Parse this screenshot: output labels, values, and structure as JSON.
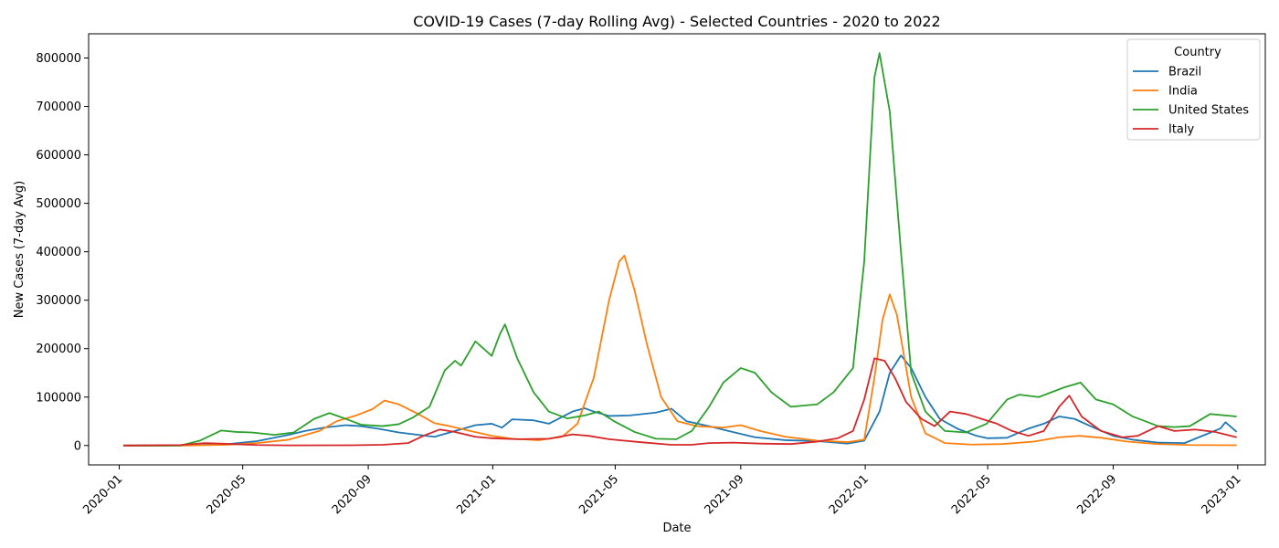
{
  "chart_data": {
    "type": "line",
    "title": "COVID-19 Cases (7-day Rolling Avg) - Selected Countries - 2020 to 2022",
    "xlabel": "Date",
    "ylabel": "New Cases (7-day Avg)",
    "xlim": [
      "2019-12-02",
      "2023-01-28"
    ],
    "ylim": [
      -40000,
      850000
    ],
    "x_ticks": [
      "2020-01",
      "2020-05",
      "2020-09",
      "2021-01",
      "2021-05",
      "2021-09",
      "2022-01",
      "2022-05",
      "2022-09",
      "2023-01"
    ],
    "y_ticks": [
      0,
      100000,
      200000,
      300000,
      400000,
      500000,
      600000,
      700000,
      800000
    ],
    "grid": false,
    "legend": {
      "title": "Country",
      "position": "top-right"
    },
    "series": [
      {
        "name": "Brazil",
        "color": "#1f77b4",
        "points": [
          [
            "2020-01-05",
            0
          ],
          [
            "2020-02-15",
            0
          ],
          [
            "2020-03-15",
            1000
          ],
          [
            "2020-04-15",
            2500
          ],
          [
            "2020-05-15",
            9000
          ],
          [
            "2020-06-15",
            22000
          ],
          [
            "2020-07-01",
            30000
          ],
          [
            "2020-07-20",
            37000
          ],
          [
            "2020-08-10",
            42000
          ],
          [
            "2020-08-25",
            40000
          ],
          [
            "2020-09-10",
            35000
          ],
          [
            "2020-10-01",
            27000
          ],
          [
            "2020-10-20",
            22000
          ],
          [
            "2020-11-05",
            18000
          ],
          [
            "2020-11-25",
            30000
          ],
          [
            "2020-12-15",
            42000
          ],
          [
            "2020-12-31",
            45000
          ],
          [
            "2021-01-10",
            37000
          ],
          [
            "2021-01-20",
            54000
          ],
          [
            "2021-02-10",
            52000
          ],
          [
            "2021-02-25",
            45000
          ],
          [
            "2021-03-20",
            70000
          ],
          [
            "2021-04-01",
            77000
          ],
          [
            "2021-04-10",
            70000
          ],
          [
            "2021-04-25",
            61000
          ],
          [
            "2021-05-15",
            62000
          ],
          [
            "2021-06-10",
            68000
          ],
          [
            "2021-06-25",
            76000
          ],
          [
            "2021-07-10",
            50000
          ],
          [
            "2021-08-01",
            40000
          ],
          [
            "2021-08-20",
            30000
          ],
          [
            "2021-09-15",
            17000
          ],
          [
            "2021-10-15",
            11000
          ],
          [
            "2021-11-15",
            9000
          ],
          [
            "2021-12-15",
            4000
          ],
          [
            "2021-12-31",
            10000
          ],
          [
            "2022-01-15",
            70000
          ],
          [
            "2022-01-25",
            150000
          ],
          [
            "2022-02-05",
            186000
          ],
          [
            "2022-02-15",
            160000
          ],
          [
            "2022-03-01",
            100000
          ],
          [
            "2022-03-15",
            55000
          ],
          [
            "2022-04-01",
            35000
          ],
          [
            "2022-04-20",
            20000
          ],
          [
            "2022-05-01",
            15000
          ],
          [
            "2022-05-20",
            16000
          ],
          [
            "2022-06-10",
            35000
          ],
          [
            "2022-06-25",
            45000
          ],
          [
            "2022-07-10",
            60000
          ],
          [
            "2022-07-25",
            55000
          ],
          [
            "2022-08-15",
            35000
          ],
          [
            "2022-09-01",
            20000
          ],
          [
            "2022-09-20",
            12000
          ],
          [
            "2022-10-15",
            6000
          ],
          [
            "2022-11-10",
            5000
          ],
          [
            "2022-11-25",
            18000
          ],
          [
            "2022-12-15",
            35000
          ],
          [
            "2022-12-20",
            48000
          ],
          [
            "2022-12-31",
            28000
          ]
        ]
      },
      {
        "name": "India",
        "color": "#ff7f0e",
        "points": [
          [
            "2020-01-05",
            0
          ],
          [
            "2020-03-01",
            0
          ],
          [
            "2020-04-15",
            1500
          ],
          [
            "2020-05-15",
            5000
          ],
          [
            "2020-06-15",
            12000
          ],
          [
            "2020-07-15",
            30000
          ],
          [
            "2020-08-01",
            50000
          ],
          [
            "2020-08-20",
            62000
          ],
          [
            "2020-09-05",
            75000
          ],
          [
            "2020-09-17",
            93000
          ],
          [
            "2020-10-01",
            85000
          ],
          [
            "2020-10-20",
            65000
          ],
          [
            "2020-11-05",
            46000
          ],
          [
            "2020-11-20",
            40000
          ],
          [
            "2020-12-10",
            30000
          ],
          [
            "2020-12-31",
            20000
          ],
          [
            "2021-01-20",
            14000
          ],
          [
            "2021-02-15",
            11000
          ],
          [
            "2021-03-10",
            18000
          ],
          [
            "2021-03-25",
            45000
          ],
          [
            "2021-04-10",
            140000
          ],
          [
            "2021-04-25",
            300000
          ],
          [
            "2021-05-05",
            380000
          ],
          [
            "2021-05-10",
            392000
          ],
          [
            "2021-05-20",
            320000
          ],
          [
            "2021-06-01",
            210000
          ],
          [
            "2021-06-15",
            100000
          ],
          [
            "2021-07-01",
            50000
          ],
          [
            "2021-07-20",
            40000
          ],
          [
            "2021-08-15",
            37000
          ],
          [
            "2021-09-01",
            42000
          ],
          [
            "2021-09-20",
            30000
          ],
          [
            "2021-10-15",
            18000
          ],
          [
            "2021-11-15",
            10000
          ],
          [
            "2021-12-15",
            7000
          ],
          [
            "2021-12-31",
            12000
          ],
          [
            "2022-01-10",
            140000
          ],
          [
            "2022-01-18",
            260000
          ],
          [
            "2022-01-25",
            312000
          ],
          [
            "2022-02-01",
            270000
          ],
          [
            "2022-02-15",
            100000
          ],
          [
            "2022-03-01",
            25000
          ],
          [
            "2022-03-20",
            5000
          ],
          [
            "2022-04-15",
            2000
          ],
          [
            "2022-05-15",
            3000
          ],
          [
            "2022-06-15",
            8000
          ],
          [
            "2022-07-10",
            17000
          ],
          [
            "2022-07-30",
            20000
          ],
          [
            "2022-08-20",
            16000
          ],
          [
            "2022-09-15",
            8000
          ],
          [
            "2022-10-15",
            3000
          ],
          [
            "2022-11-15",
            1000
          ],
          [
            "2022-12-31",
            500
          ]
        ]
      },
      {
        "name": "United States",
        "color": "#2ca02c",
        "points": [
          [
            "2020-01-05",
            0
          ],
          [
            "2020-03-01",
            0
          ],
          [
            "2020-03-20",
            10000
          ],
          [
            "2020-04-10",
            31000
          ],
          [
            "2020-04-25",
            28000
          ],
          [
            "2020-05-10",
            27000
          ],
          [
            "2020-06-01",
            22000
          ],
          [
            "2020-06-20",
            27000
          ],
          [
            "2020-07-10",
            55000
          ],
          [
            "2020-07-25",
            67000
          ],
          [
            "2020-08-10",
            55000
          ],
          [
            "2020-08-25",
            43000
          ],
          [
            "2020-09-15",
            40000
          ],
          [
            "2020-10-01",
            44000
          ],
          [
            "2020-10-15",
            58000
          ],
          [
            "2020-10-31",
            80000
          ],
          [
            "2020-11-15",
            155000
          ],
          [
            "2020-11-25",
            175000
          ],
          [
            "2020-12-01",
            165000
          ],
          [
            "2020-12-15",
            215000
          ],
          [
            "2020-12-31",
            185000
          ],
          [
            "2021-01-08",
            230000
          ],
          [
            "2021-01-13",
            250000
          ],
          [
            "2021-01-25",
            180000
          ],
          [
            "2021-02-10",
            110000
          ],
          [
            "2021-02-25",
            70000
          ],
          [
            "2021-03-15",
            56000
          ],
          [
            "2021-04-01",
            62000
          ],
          [
            "2021-04-15",
            70000
          ],
          [
            "2021-04-30",
            50000
          ],
          [
            "2021-05-20",
            28000
          ],
          [
            "2021-06-10",
            14000
          ],
          [
            "2021-06-30",
            13000
          ],
          [
            "2021-07-15",
            30000
          ],
          [
            "2021-08-01",
            80000
          ],
          [
            "2021-08-15",
            130000
          ],
          [
            "2021-09-01",
            160000
          ],
          [
            "2021-09-15",
            150000
          ],
          [
            "2021-10-01",
            110000
          ],
          [
            "2021-10-20",
            80000
          ],
          [
            "2021-11-15",
            85000
          ],
          [
            "2021-12-01",
            110000
          ],
          [
            "2021-12-20",
            160000
          ],
          [
            "2021-12-31",
            380000
          ],
          [
            "2022-01-10",
            760000
          ],
          [
            "2022-01-15",
            810000
          ],
          [
            "2022-01-25",
            690000
          ],
          [
            "2022-02-05",
            400000
          ],
          [
            "2022-02-15",
            150000
          ],
          [
            "2022-03-01",
            70000
          ],
          [
            "2022-03-20",
            30000
          ],
          [
            "2022-04-10",
            27000
          ],
          [
            "2022-04-30",
            45000
          ],
          [
            "2022-05-20",
            95000
          ],
          [
            "2022-06-01",
            105000
          ],
          [
            "2022-06-20",
            100000
          ],
          [
            "2022-07-15",
            120000
          ],
          [
            "2022-07-31",
            130000
          ],
          [
            "2022-08-15",
            95000
          ],
          [
            "2022-09-01",
            85000
          ],
          [
            "2022-09-20",
            60000
          ],
          [
            "2022-10-15",
            40000
          ],
          [
            "2022-10-31",
            38000
          ],
          [
            "2022-11-15",
            40000
          ],
          [
            "2022-12-05",
            65000
          ],
          [
            "2022-12-31",
            60000
          ]
        ]
      },
      {
        "name": "Italy",
        "color": "#d62728",
        "points": [
          [
            "2020-01-05",
            0
          ],
          [
            "2020-03-01",
            1000
          ],
          [
            "2020-03-25",
            5000
          ],
          [
            "2020-04-15",
            3500
          ],
          [
            "2020-05-15",
            1000
          ],
          [
            "2020-06-15",
            300
          ],
          [
            "2020-08-15",
            500
          ],
          [
            "2020-09-15",
            1500
          ],
          [
            "2020-10-10",
            5000
          ],
          [
            "2020-10-25",
            20000
          ],
          [
            "2020-11-10",
            33000
          ],
          [
            "2020-11-25",
            28000
          ],
          [
            "2020-12-15",
            18000
          ],
          [
            "2020-12-31",
            15000
          ],
          [
            "2021-01-25",
            13000
          ],
          [
            "2021-02-25",
            14000
          ],
          [
            "2021-03-20",
            23000
          ],
          [
            "2021-04-05",
            20000
          ],
          [
            "2021-04-25",
            13000
          ],
          [
            "2021-05-25",
            7000
          ],
          [
            "2021-06-25",
            1500
          ],
          [
            "2021-07-15",
            1500
          ],
          [
            "2021-08-01",
            5000
          ],
          [
            "2021-08-25",
            6000
          ],
          [
            "2021-09-20",
            4000
          ],
          [
            "2021-10-20",
            3000
          ],
          [
            "2021-11-15",
            8000
          ],
          [
            "2021-12-05",
            15000
          ],
          [
            "2021-12-20",
            30000
          ],
          [
            "2021-12-31",
            95000
          ],
          [
            "2022-01-10",
            180000
          ],
          [
            "2022-01-20",
            175000
          ],
          [
            "2022-01-30",
            140000
          ],
          [
            "2022-02-10",
            90000
          ],
          [
            "2022-02-25",
            55000
          ],
          [
            "2022-03-10",
            40000
          ],
          [
            "2022-03-25",
            70000
          ],
          [
            "2022-04-10",
            65000
          ],
          [
            "2022-04-25",
            55000
          ],
          [
            "2022-05-10",
            45000
          ],
          [
            "2022-05-25",
            30000
          ],
          [
            "2022-06-10",
            20000
          ],
          [
            "2022-06-25",
            30000
          ],
          [
            "2022-07-10",
            80000
          ],
          [
            "2022-07-20",
            103000
          ],
          [
            "2022-08-01",
            60000
          ],
          [
            "2022-08-20",
            30000
          ],
          [
            "2022-09-10",
            17000
          ],
          [
            "2022-09-25",
            20000
          ],
          [
            "2022-10-15",
            40000
          ],
          [
            "2022-10-31",
            30000
          ],
          [
            "2022-11-20",
            33000
          ],
          [
            "2022-12-10",
            28000
          ],
          [
            "2022-12-31",
            17000
          ]
        ]
      }
    ]
  }
}
